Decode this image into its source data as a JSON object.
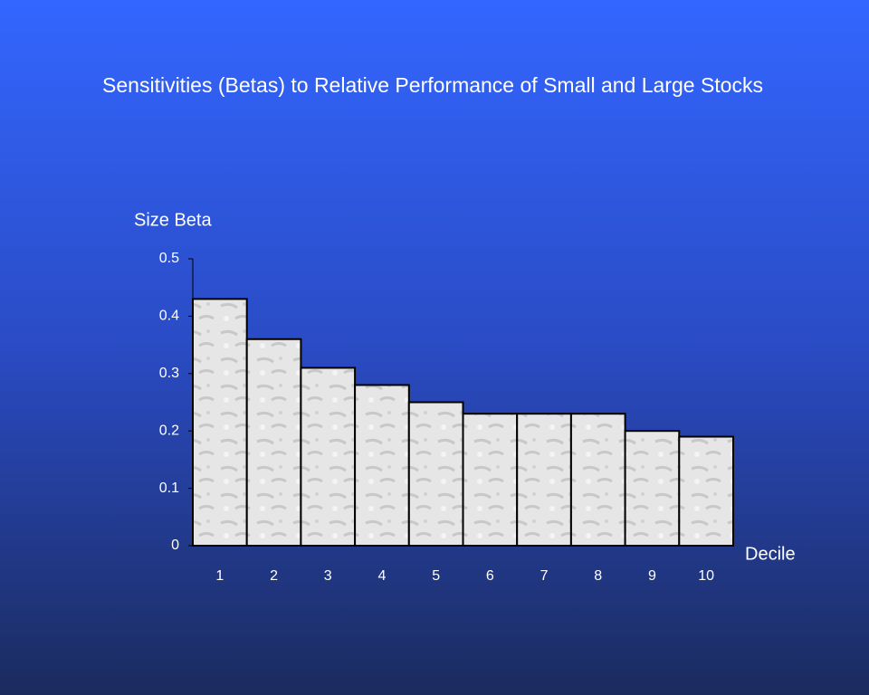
{
  "chart_data": {
    "type": "bar",
    "title": "Sensitivities (Betas) to Relative Performance of Small and Large Stocks",
    "y_label": "Size Beta",
    "x_label": "Decile",
    "categories": [
      "1",
      "2",
      "3",
      "4",
      "5",
      "6",
      "7",
      "8",
      "9",
      "10"
    ],
    "values": [
      0.43,
      0.36,
      0.31,
      0.28,
      0.25,
      0.23,
      0.23,
      0.23,
      0.2,
      0.19
    ],
    "color": "#e4e4e4",
    "ylim": [
      0,
      0.5
    ],
    "yticks": [
      0,
      0.1,
      0.2,
      0.3,
      0.4,
      0.5
    ],
    "grid": false
  }
}
